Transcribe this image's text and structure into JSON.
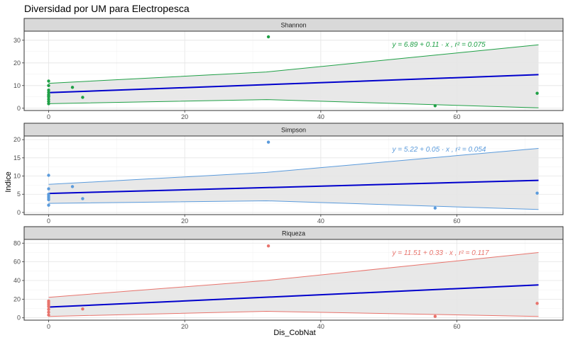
{
  "chart_data": {
    "type": "scatter",
    "title": "Diversidad por UM para Electropesca",
    "xlabel": "Dis_CobNat",
    "ylabel": "Indice",
    "xlim": [
      -3.6,
      75.6
    ],
    "x_ticks": [
      0,
      20,
      40,
      60
    ],
    "grid": true,
    "fit_color": "#0000cc",
    "band_fill": "#e6e6e6",
    "panels": [
      {
        "name": "Shannon",
        "color": "#1fa046",
        "ylim": [
          -1,
          34
        ],
        "y_ticks": [
          0,
          10,
          20,
          30
        ],
        "equation": "y = 6.89 + 0.11 · x ,  r² = 0.075",
        "fit": {
          "intercept": 6.89,
          "slope": 0.11
        },
        "band": {
          "x": [
            0,
            32,
            72
          ],
          "lower": [
            2.0,
            3.8,
            0.2
          ],
          "upper": [
            11.0,
            16.0,
            28.0
          ]
        },
        "points": [
          {
            "x": 0,
            "y": 2
          },
          {
            "x": 0,
            "y": 3
          },
          {
            "x": 0,
            "y": 4
          },
          {
            "x": 0,
            "y": 5
          },
          {
            "x": 0,
            "y": 5.5
          },
          {
            "x": 0,
            "y": 6
          },
          {
            "x": 0,
            "y": 7
          },
          {
            "x": 0,
            "y": 8
          },
          {
            "x": 0,
            "y": 10
          },
          {
            "x": 0,
            "y": 12
          },
          {
            "x": 3.5,
            "y": 9.2
          },
          {
            "x": 5,
            "y": 4.8
          },
          {
            "x": 32.3,
            "y": 31.5
          },
          {
            "x": 56.8,
            "y": 1.1
          },
          {
            "x": 71.8,
            "y": 6.6
          }
        ]
      },
      {
        "name": "Simpson",
        "color": "#5b9bdc",
        "ylim": [
          -0.6,
          21
        ],
        "y_ticks": [
          0,
          5,
          10,
          15,
          20
        ],
        "equation": "y = 5.22 + 0.05 · x ,  r² = 0.054",
        "fit": {
          "intercept": 5.22,
          "slope": 0.05
        },
        "band": {
          "x": [
            0,
            32,
            72
          ],
          "lower": [
            2.5,
            3.2,
            0.8
          ],
          "upper": [
            7.7,
            11.0,
            17.6
          ]
        },
        "points": [
          {
            "x": 0,
            "y": 2
          },
          {
            "x": 0,
            "y": 3.5
          },
          {
            "x": 0,
            "y": 4
          },
          {
            "x": 0,
            "y": 4.5
          },
          {
            "x": 0,
            "y": 5
          },
          {
            "x": 0,
            "y": 6.5
          },
          {
            "x": 0,
            "y": 10.2
          },
          {
            "x": 3.5,
            "y": 7.1
          },
          {
            "x": 5,
            "y": 3.8
          },
          {
            "x": 32.3,
            "y": 19.3
          },
          {
            "x": 56.8,
            "y": 1.2
          },
          {
            "x": 71.8,
            "y": 5.3
          }
        ]
      },
      {
        "name": "Riqueza",
        "color": "#e8746d",
        "ylim": [
          -2.5,
          84
        ],
        "y_ticks": [
          0,
          20,
          40,
          60,
          80
        ],
        "equation": "y = 11.51 + 0.33 · x ,  r² = 0.117",
        "fit": {
          "intercept": 11.51,
          "slope": 0.33
        },
        "band": {
          "x": [
            0,
            32,
            72
          ],
          "lower": [
            1.5,
            7.0,
            1.5
          ],
          "upper": [
            22.0,
            40.0,
            70.0
          ]
        },
        "points": [
          {
            "x": 0,
            "y": 3
          },
          {
            "x": 0,
            "y": 6
          },
          {
            "x": 0,
            "y": 9
          },
          {
            "x": 0,
            "y": 12
          },
          {
            "x": 0,
            "y": 14
          },
          {
            "x": 0,
            "y": 16
          },
          {
            "x": 0,
            "y": 18
          },
          {
            "x": 5,
            "y": 9.5
          },
          {
            "x": 32.3,
            "y": 77
          },
          {
            "x": 56.8,
            "y": 1.5
          },
          {
            "x": 71.8,
            "y": 15.5
          }
        ]
      }
    ]
  }
}
